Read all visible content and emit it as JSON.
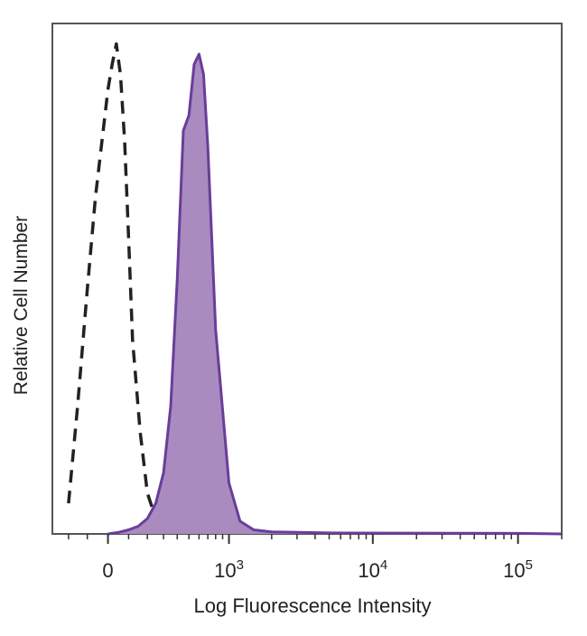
{
  "chart_data": {
    "type": "area",
    "title": "",
    "xlabel": "Log Fluorescence Intensity",
    "ylabel": "Relative Cell Number",
    "x_scale": "biexponential",
    "xlim": [
      -300,
      200000
    ],
    "ylim": [
      0,
      1.0
    ],
    "x_ticks": [
      {
        "value": 0,
        "base": "0",
        "exp": ""
      },
      {
        "value": 1000,
        "base": "10",
        "exp": "3"
      },
      {
        "value": 10000,
        "base": "10",
        "exp": "4"
      },
      {
        "value": 100000,
        "base": "10",
        "exp": "5"
      }
    ],
    "grid": false,
    "legend": "none",
    "series": [
      {
        "style": "dashed",
        "color": "#222222",
        "x": [
          -200,
          -150,
          -100,
          -60,
          -20,
          0,
          20,
          40,
          60,
          80,
          100,
          120,
          160,
          200,
          250,
          300
        ],
        "y": [
          0.06,
          0.25,
          0.48,
          0.66,
          0.8,
          0.87,
          0.92,
          0.96,
          0.9,
          0.77,
          0.58,
          0.38,
          0.2,
          0.08,
          0.03,
          0.01
        ]
      },
      {
        "style": "filled",
        "color": "#6a3d9a",
        "fill": "#a98bc0",
        "x": [
          0,
          50,
          100,
          150,
          200,
          250,
          300,
          350,
          400,
          450,
          500,
          550,
          600,
          650,
          700,
          800,
          1000,
          1200,
          1500,
          2000,
          5000,
          100000,
          200000
        ],
        "y": [
          0.0,
          0.003,
          0.008,
          0.015,
          0.03,
          0.06,
          0.12,
          0.25,
          0.5,
          0.79,
          0.82,
          0.92,
          0.94,
          0.9,
          0.76,
          0.4,
          0.1,
          0.025,
          0.008,
          0.004,
          0.002,
          0.001,
          0.0
        ]
      }
    ]
  }
}
